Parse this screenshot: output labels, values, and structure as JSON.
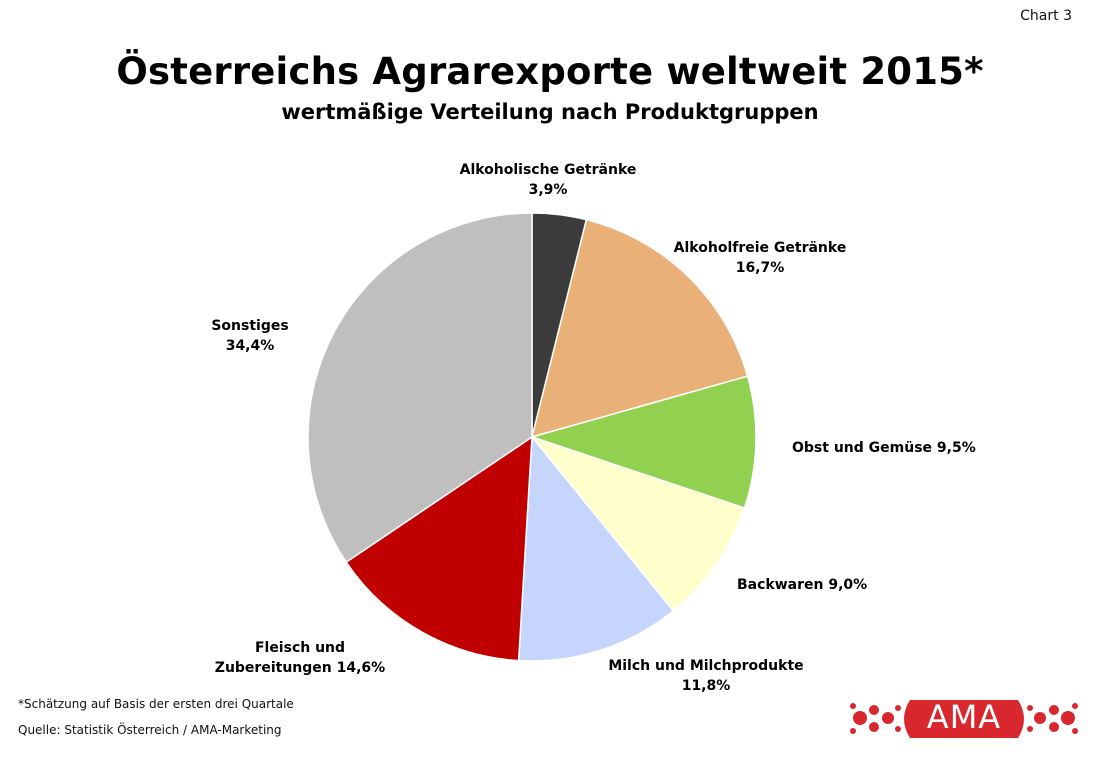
{
  "chart_label": "Chart 3",
  "footnote": "*Schätzung auf Basis der ersten drei Quartale",
  "source": "Quelle: Statistik Österreich / AMA-Marketing",
  "logo_text": "AMA",
  "colors": {
    "brand_red": "#d9272e"
  },
  "chart_data": {
    "type": "pie",
    "title": "Österreichs Agrarexporte weltweit 2015*",
    "subtitle": "wertmäßige Verteilung nach Produktgruppen",
    "slices": [
      {
        "label": "Alkoholische Getränke",
        "pct_label": "3,9%",
        "value": 3.9,
        "color": "#3c3c3c"
      },
      {
        "label": "Alkoholfreie Getränke",
        "pct_label": "16,7%",
        "value": 16.7,
        "color": "#e9b078"
      },
      {
        "label": "Obst und Gemüse",
        "pct_label": "9,5%",
        "value": 9.5,
        "color": "#92d050"
      },
      {
        "label": "Backwaren",
        "pct_label": "9,0%",
        "value": 9.0,
        "color": "#ffffcc"
      },
      {
        "label": "Milch und Milchprodukte",
        "pct_label": "11,8%",
        "value": 11.8,
        "color": "#c5d5fb"
      },
      {
        "label": "Fleisch und Zubereitungen",
        "pct_label": "14,6%",
        "value": 14.6,
        "color": "#c00000"
      },
      {
        "label": "Sonstiges",
        "pct_label": "34,4%",
        "value": 34.4,
        "color": "#bfbfbf"
      }
    ]
  }
}
